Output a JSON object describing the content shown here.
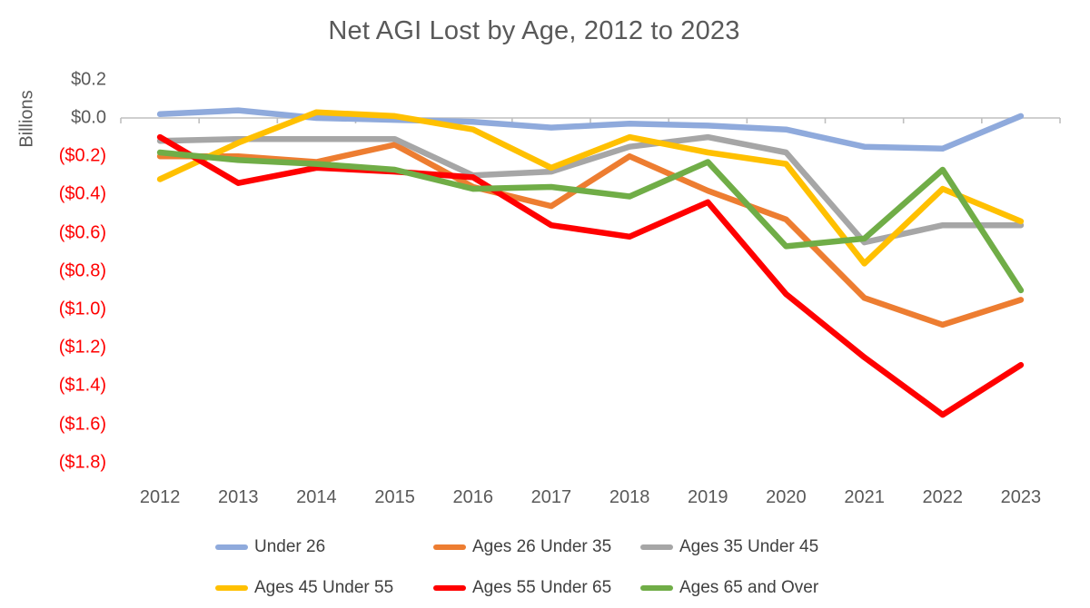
{
  "title": "Net AGI Lost by Age, 2012 to 2023",
  "y_axis": {
    "label": "Billions",
    "ticks": [
      {
        "text": "$0.2",
        "color": "#595959"
      },
      {
        "text": "$0.0",
        "color": "#595959"
      },
      {
        "text": "($0.2)",
        "color": "#FF0000"
      },
      {
        "text": "($0.4)",
        "color": "#FF0000"
      },
      {
        "text": "($0.6)",
        "color": "#FF0000"
      },
      {
        "text": "($0.8)",
        "color": "#FF0000"
      },
      {
        "text": "($1.0)",
        "color": "#FF0000"
      },
      {
        "text": "($1.2)",
        "color": "#FF0000"
      },
      {
        "text": "($1.4)",
        "color": "#FF0000"
      },
      {
        "text": "($1.6)",
        "color": "#FF0000"
      },
      {
        "text": "($1.8)",
        "color": "#FF0000"
      }
    ]
  },
  "x_axis": {
    "years": [
      "2012",
      "2013",
      "2014",
      "2015",
      "2016",
      "2017",
      "2018",
      "2019",
      "2020",
      "2021",
      "2022",
      "2023"
    ]
  },
  "colors": {
    "axis_line": "#BFBFBF",
    "axis_text": "#595959",
    "negative_text": "#FF0000",
    "legend_text": "#404040"
  },
  "chart_data": {
    "type": "line",
    "title": "Net AGI Lost by Age, 2012 to 2023",
    "xlabel": "",
    "ylabel": "Billions",
    "ylim": [
      -1.8,
      0.2
    ],
    "y_tick_step": 0.2,
    "grid": false,
    "legend_position": "bottom",
    "categories": [
      "2012",
      "2013",
      "2014",
      "2015",
      "2016",
      "2017",
      "2018",
      "2019",
      "2020",
      "2021",
      "2022",
      "2023"
    ],
    "series": [
      {
        "name": "Under 26",
        "color": "#8FAADC",
        "values": [
          0.02,
          0.04,
          0.0,
          -0.01,
          -0.02,
          -0.05,
          -0.03,
          -0.04,
          -0.06,
          -0.15,
          -0.16,
          0.01
        ]
      },
      {
        "name": "Ages 26 Under 35",
        "color": "#ED7D31",
        "values": [
          -0.2,
          -0.2,
          -0.23,
          -0.14,
          -0.36,
          -0.46,
          -0.2,
          -0.38,
          -0.53,
          -0.94,
          -1.08,
          -0.95
        ]
      },
      {
        "name": "Ages 35 Under 45",
        "color": "#A6A6A6",
        "values": [
          -0.12,
          -0.11,
          -0.11,
          -0.11,
          -0.3,
          -0.28,
          -0.15,
          -0.1,
          -0.18,
          -0.65,
          -0.56,
          -0.56
        ]
      },
      {
        "name": "Ages 45 Under 55",
        "color": "#FFC000",
        "values": [
          -0.32,
          -0.13,
          0.03,
          0.01,
          -0.06,
          -0.26,
          -0.1,
          -0.18,
          -0.24,
          -0.76,
          -0.37,
          -0.54
        ]
      },
      {
        "name": "Ages 55 Under 65",
        "color": "#FF0000",
        "values": [
          -0.1,
          -0.34,
          -0.26,
          -0.28,
          -0.31,
          -0.56,
          -0.62,
          -0.44,
          -0.92,
          -1.25,
          -1.55,
          -1.29
        ]
      },
      {
        "name": "Ages 65 and Over",
        "color": "#70AD47",
        "values": [
          -0.18,
          -0.22,
          -0.24,
          -0.27,
          -0.37,
          -0.36,
          -0.41,
          -0.23,
          -0.67,
          -0.63,
          -0.27,
          -0.9
        ]
      }
    ]
  }
}
